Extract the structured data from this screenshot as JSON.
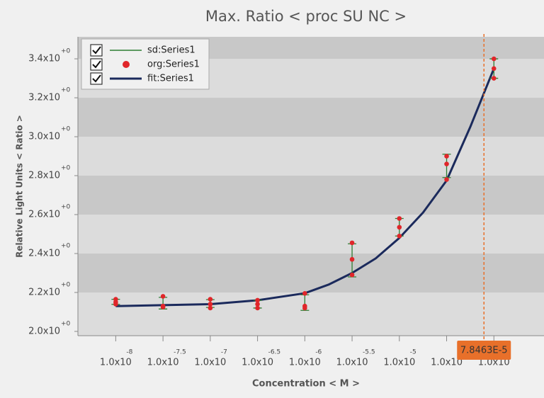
{
  "chart_data": {
    "type": "scatter",
    "title": "Max. Ratio < proc SU NC >",
    "x_label": "Concentration < M >",
    "y_label": "Relative Light Units < Ratio >",
    "xlim": [
      -8.4,
      -3.47
    ],
    "ylim": [
      1.978,
      3.513
    ],
    "xticks": [
      {
        "value": -8,
        "label": "1.0x10",
        "exponent": "-8"
      },
      {
        "value": -7.5,
        "label": "1.0x10",
        "exponent": "-7.5"
      },
      {
        "value": -7,
        "label": "1.0x10",
        "exponent": "-7"
      },
      {
        "value": -6.5,
        "label": "1.0x10",
        "exponent": "-6.5"
      },
      {
        "value": -6,
        "label": "1.0x10",
        "exponent": "-6"
      },
      {
        "value": -5.5,
        "label": "1.0x10",
        "exponent": "-5.5"
      },
      {
        "value": -5,
        "label": "1.0x10",
        "exponent": "-5"
      },
      {
        "value": -4.5,
        "label": "1.0x10",
        "exponent": "-4.5"
      },
      {
        "value": -4,
        "label": "1.0x10",
        "exponent": "-4"
      }
    ],
    "yticks": [
      {
        "value": 2.0,
        "label": "2.0x10",
        "exponent": "+0"
      },
      {
        "value": 2.2,
        "label": "2.2x10",
        "exponent": "+0"
      },
      {
        "value": 2.4,
        "label": "2.4x10",
        "exponent": "+0"
      },
      {
        "value": 2.6,
        "label": "2.6x10",
        "exponent": "+0"
      },
      {
        "value": 2.8,
        "label": "2.8x10",
        "exponent": "+0"
      },
      {
        "value": 3.0,
        "label": "3.0x10",
        "exponent": "+0"
      },
      {
        "value": 3.2,
        "label": "3.2x10",
        "exponent": "+0"
      },
      {
        "value": 3.4,
        "label": "3.4x10",
        "exponent": "+0"
      }
    ],
    "grid": "bands",
    "series": [
      {
        "name": "sd:Series1",
        "type": "errorbar",
        "color": "#2e7d32",
        "x": [
          -8,
          -7.5,
          -7,
          -6.5,
          -6,
          -5.5,
          -5,
          -4.5,
          -4
        ],
        "values": [
          2.152,
          2.145,
          2.143,
          2.14,
          2.148,
          2.365,
          2.535,
          2.85,
          3.35
        ],
        "errors": [
          0.013,
          0.03,
          0.02,
          0.02,
          0.04,
          0.085,
          0.045,
          0.06,
          0.05
        ]
      },
      {
        "name": "org:Series1",
        "type": "scatter",
        "color": "#e0262a",
        "x": [
          -8,
          -8,
          -8,
          -7.5,
          -7.5,
          -7.5,
          -7,
          -7,
          -7,
          -6.5,
          -6.5,
          -6.5,
          -6,
          -6,
          -6,
          -5.5,
          -5.5,
          -5.5,
          -5,
          -5,
          -5,
          -4.5,
          -4.5,
          -4.5,
          -4,
          -4,
          -4
        ],
        "values": [
          2.165,
          2.15,
          2.14,
          2.18,
          2.13,
          2.125,
          2.165,
          2.14,
          2.12,
          2.16,
          2.14,
          2.12,
          2.195,
          2.13,
          2.12,
          2.455,
          2.37,
          2.29,
          2.58,
          2.535,
          2.49,
          2.9,
          2.86,
          2.78,
          3.4,
          3.35,
          3.3
        ]
      },
      {
        "name": "fit:Series1",
        "type": "line",
        "color": "#1b2a5c",
        "x": [
          -8,
          -7.5,
          -7,
          -6.5,
          -6,
          -5.75,
          -5.5,
          -5.25,
          -5,
          -4.75,
          -4.5,
          -4.25,
          -4
        ],
        "values": [
          2.13,
          2.135,
          2.14,
          2.16,
          2.196,
          2.24,
          2.3,
          2.375,
          2.48,
          2.61,
          2.775,
          3.05,
          3.35
        ]
      }
    ],
    "marker_line": {
      "value": -4.105,
      "label": "7.8463E-5",
      "color": "#e8702a"
    }
  }
}
